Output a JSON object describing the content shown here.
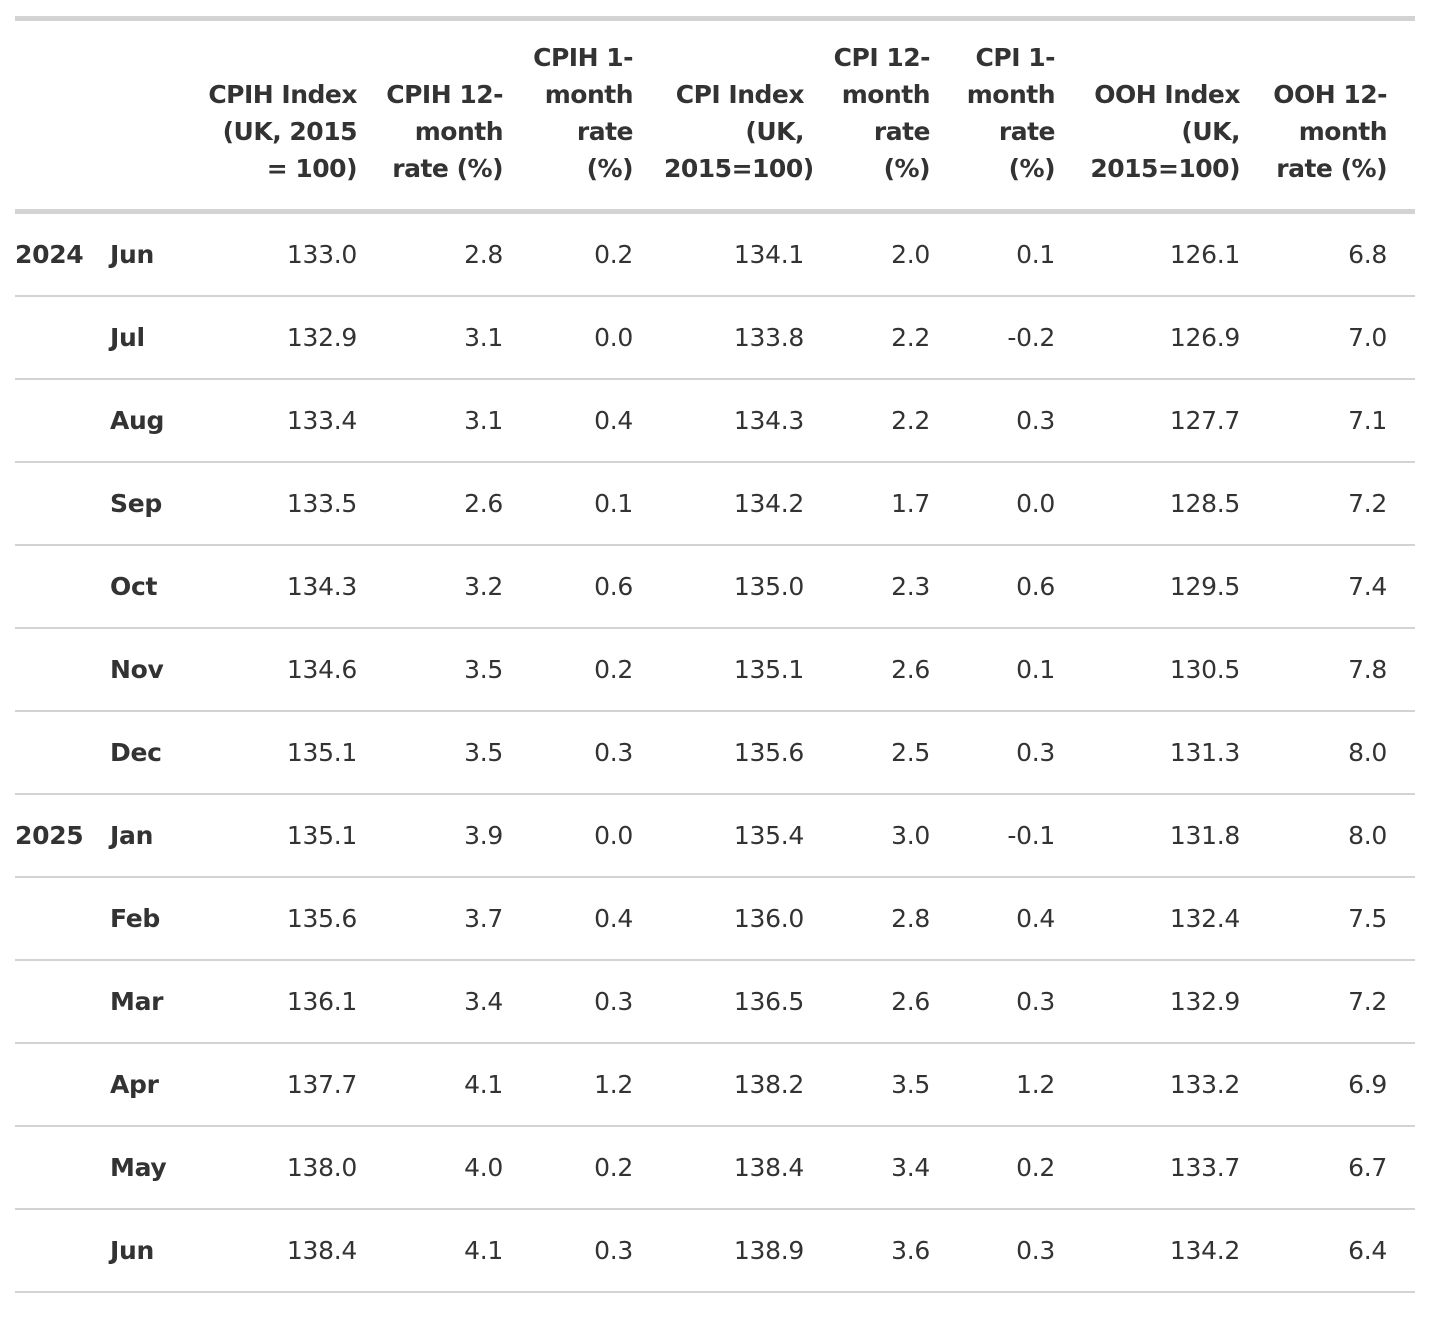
{
  "table": {
    "columns": [
      "",
      "",
      "CPIH Index (UK, 2015 = 100)",
      "CPIH 12-month rate (%)",
      "CPIH 1-month rate (%)",
      "CPI Index (UK, 2015=100)",
      "CPI 12-month rate (%)",
      "CPI 1-month rate (%)",
      "OOH Index (UK, 2015=100)",
      "OOH 12-month rate (%)"
    ],
    "rows": [
      [
        "2024",
        "Jun",
        "133.0",
        "2.8",
        "0.2",
        "134.1",
        "2.0",
        "0.1",
        "126.1",
        "6.8"
      ],
      [
        null,
        "Jul",
        "132.9",
        "3.1",
        "0.0",
        "133.8",
        "2.2",
        "-0.2",
        "126.9",
        "7.0"
      ],
      [
        null,
        "Aug",
        "133.4",
        "3.1",
        "0.4",
        "134.3",
        "2.2",
        "0.3",
        "127.7",
        "7.1"
      ],
      [
        null,
        "Sep",
        "133.5",
        "2.6",
        "0.1",
        "134.2",
        "1.7",
        "0.0",
        "128.5",
        "7.2"
      ],
      [
        null,
        "Oct",
        "134.3",
        "3.2",
        "0.6",
        "135.0",
        "2.3",
        "0.6",
        "129.5",
        "7.4"
      ],
      [
        null,
        "Nov",
        "134.6",
        "3.5",
        "0.2",
        "135.1",
        "2.6",
        "0.1",
        "130.5",
        "7.8"
      ],
      [
        null,
        "Dec",
        "135.1",
        "3.5",
        "0.3",
        "135.6",
        "2.5",
        "0.3",
        "131.3",
        "8.0"
      ],
      [
        "2025",
        "Jan",
        "135.1",
        "3.9",
        "0.0",
        "135.4",
        "3.0",
        "-0.1",
        "131.8",
        "8.0"
      ],
      [
        null,
        "Feb",
        "135.6",
        "3.7",
        "0.4",
        "136.0",
        "2.8",
        "0.4",
        "132.4",
        "7.5"
      ],
      [
        null,
        "Mar",
        "136.1",
        "3.4",
        "0.3",
        "136.5",
        "2.6",
        "0.3",
        "132.9",
        "7.2"
      ],
      [
        null,
        "Apr",
        "137.7",
        "4.1",
        "1.2",
        "138.2",
        "3.5",
        "1.2",
        "133.2",
        "6.9"
      ],
      [
        null,
        "May",
        "138.0",
        "4.0",
        "0.2",
        "138.4",
        "3.4",
        "0.2",
        "133.7",
        "6.7"
      ],
      [
        null,
        "Jun",
        "138.4",
        "4.1",
        "0.3",
        "138.9",
        "3.6",
        "0.3",
        "134.2",
        "6.4"
      ]
    ]
  }
}
